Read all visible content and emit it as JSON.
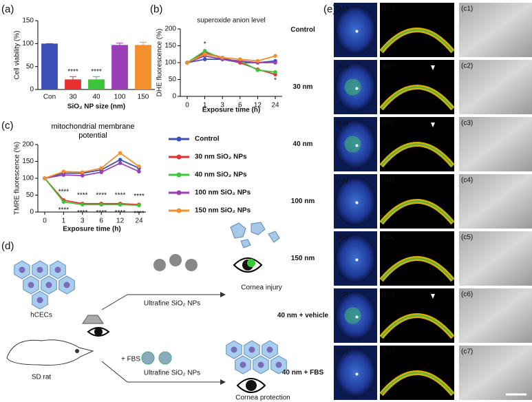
{
  "chart_data": [
    {
      "type": "bar",
      "panel": "(a)",
      "ylabel": "Cell viability (%)",
      "xlabel": "SiO₂ NP size (nm)",
      "categories": [
        "Con",
        "30",
        "40",
        "100",
        "150"
      ],
      "values": [
        100,
        22,
        22,
        97,
        97
      ],
      "errors": [
        0,
        6,
        6,
        4,
        6
      ],
      "colors": [
        "#3b4fb8",
        "#e8312f",
        "#3ec43a",
        "#9a3fb5",
        "#f2902e"
      ],
      "significance": [
        null,
        "****",
        "****",
        null,
        null
      ],
      "ylim": [
        0,
        150
      ],
      "yticks": [
        0,
        50,
        100,
        150
      ]
    },
    {
      "type": "line",
      "panel": "(b)",
      "title": "superoxide anion level",
      "xlabel": "Exposure time (h)",
      "ylabel": "DHE fluorescence (%)",
      "categories": [
        "0",
        "1",
        "3",
        "6",
        "12",
        "24"
      ],
      "ylim": [
        0,
        200
      ],
      "yticks": [
        0,
        50,
        100,
        150,
        200
      ],
      "series": [
        {
          "name": "Control",
          "color": "#3b4fb8",
          "values": [
            100,
            110,
            110,
            100,
            100,
            105
          ]
        },
        {
          "name": "30 nm SiO₂ NPs",
          "color": "#e8312f",
          "values": [
            100,
            130,
            115,
            100,
            80,
            65
          ],
          "significance": [
            null,
            "*",
            null,
            null,
            null,
            null
          ]
        },
        {
          "name": "40 nm SiO₂ NPs",
          "color": "#3ec43a",
          "values": [
            100,
            135,
            110,
            105,
            78,
            72
          ],
          "significance": [
            null,
            null,
            null,
            null,
            null,
            "*"
          ]
        },
        {
          "name": "100 nm SiO₂ NPs",
          "color": "#9a3fb5",
          "values": [
            100,
            120,
            110,
            105,
            100,
            100
          ]
        },
        {
          "name": "150 nm SiO₂ NPs",
          "color": "#f2902e",
          "values": [
            100,
            125,
            115,
            110,
            105,
            120
          ]
        }
      ]
    },
    {
      "type": "line",
      "panel": "(c)",
      "title": "mitochondrial membrane potential",
      "xlabel": "Exposure time (h)",
      "ylabel": "TMRE fluorescence (%)",
      "categories": [
        "0",
        "1",
        "3",
        "6",
        "12",
        "24"
      ],
      "ylim": [
        0,
        200
      ],
      "yticks": [
        0,
        50,
        100,
        150,
        200
      ],
      "series": [
        {
          "color": "#3b4fb8",
          "values": [
            100,
            115,
            115,
            125,
            155,
            130
          ]
        },
        {
          "color": "#e8312f",
          "values": [
            100,
            35,
            25,
            25,
            25,
            22
          ],
          "significance": [
            null,
            "****",
            "****",
            "****",
            "****",
            "****"
          ]
        },
        {
          "color": "#3ec43a",
          "values": [
            100,
            30,
            22,
            22,
            22,
            20
          ],
          "significance": [
            null,
            "****",
            "****",
            "****",
            "****",
            "****"
          ]
        },
        {
          "color": "#9a3fb5",
          "values": [
            100,
            110,
            108,
            118,
            145,
            120
          ]
        },
        {
          "color": "#f2902e",
          "values": [
            100,
            120,
            118,
            130,
            175,
            135
          ]
        }
      ]
    }
  ],
  "panel_d": {
    "label": "(d)",
    "cells": "hCECs",
    "arrow_top": "Ultrafine SiO₂ NPs",
    "injury": "Cornea injury",
    "rat": "SD rat",
    "arrow_bottom": "Ultrafine SiO₂ NPs",
    "fbs": "+ FBS",
    "protection": "Cornea protection"
  },
  "panel_e": {
    "label": "(e)",
    "rows": [
      "Control",
      "30 nm",
      "40 nm",
      "100 nm",
      "150 nm",
      "40 nm + vehicle",
      "40 nm + FBS"
    ],
    "columns": [
      [
        "(a1)",
        "(a2)",
        "(a3)",
        "(a4)",
        "(a5)",
        "(a6)",
        "(a7)"
      ],
      [
        "(b1)",
        "(b2)",
        "(b3)",
        "(b4)",
        "(b5)",
        "(b6)",
        "(b7)"
      ],
      [
        "(c1)",
        "(c2)",
        "(c3)",
        "(c4)",
        "(c5)",
        "(c6)",
        "(c7)"
      ]
    ]
  }
}
